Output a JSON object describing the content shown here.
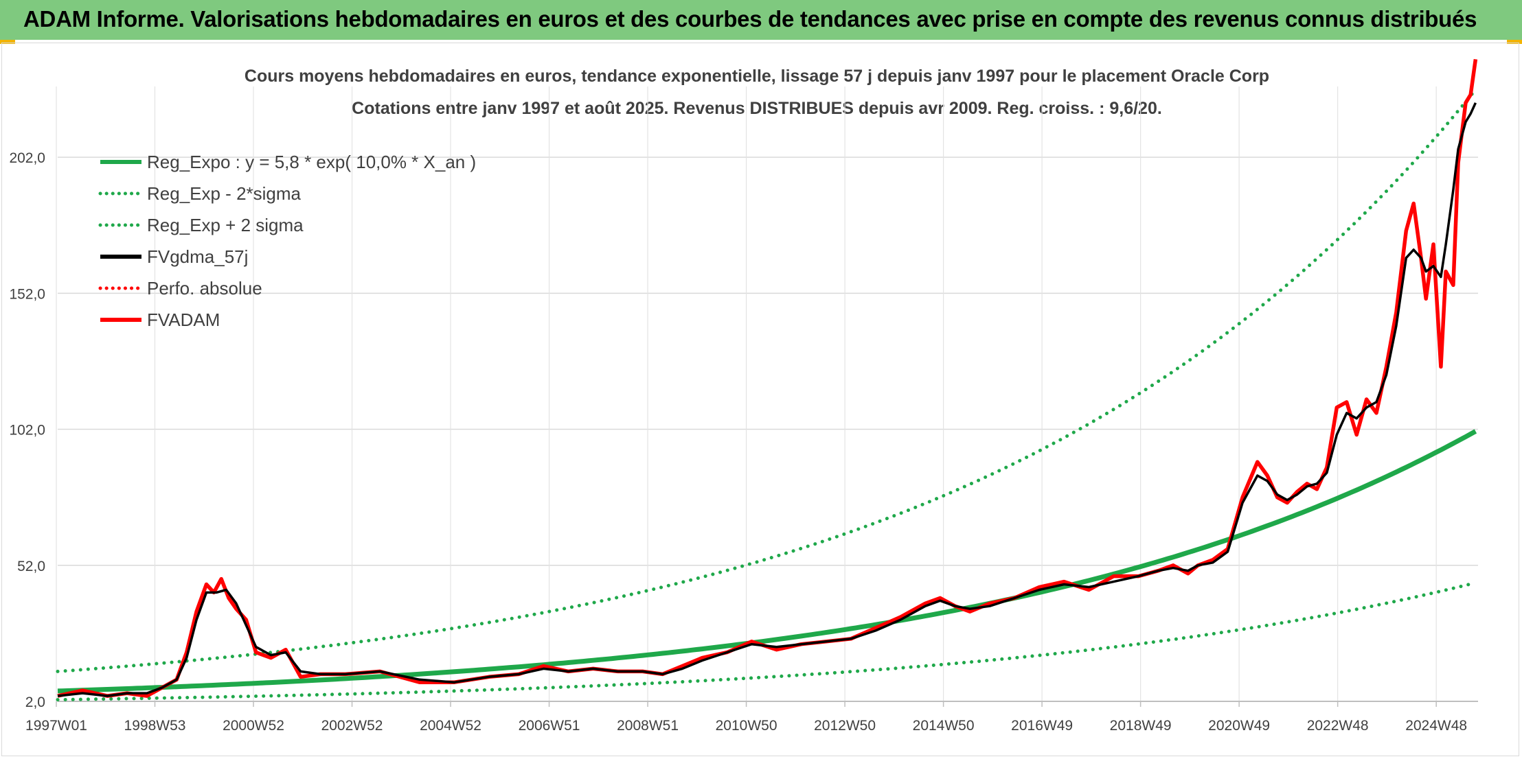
{
  "banner": {
    "title": "ADAM Informe. Valorisations hebdomadaires en euros et des courbes de tendances avec prise en compte des revenus connus distribués"
  },
  "colors": {
    "banner_bg": "#7fc97f",
    "reg_green": "#1fa84a",
    "dot_green": "#1fa84a",
    "fv_black": "#000000",
    "adam_red": "#ff0000",
    "grid": "#d9d9d9",
    "text": "#404040"
  },
  "chart_data": {
    "type": "line",
    "title_line1": "Cours moyens hebdomadaires en euros, tendance exponentielle, lissage 57 j depuis janv 1997 pour le placement Oracle Corp",
    "title_line2": "Cotations entre janv 1997 et août 2025. Revenus DISTRIBUES depuis avr 2009. Reg. croiss. : 9,6/20.",
    "x_tick_labels": [
      "1997W01",
      "1998W53",
      "2000W52",
      "2002W52",
      "2004W52",
      "2006W51",
      "2008W51",
      "2010W50",
      "2012W50",
      "2014W50",
      "2016W49",
      "2018W49",
      "2020W49",
      "2022W48",
      "2024W48"
    ],
    "y_tick_labels": [
      "2,0",
      "52,0",
      "102,0",
      "152,0",
      "202,0"
    ],
    "y_ticks": [
      2,
      52,
      102,
      152,
      202
    ],
    "ylim": [
      2,
      227
    ],
    "xlim": [
      1997.0,
      2025.65
    ],
    "grid": true,
    "legend_position": "top-left",
    "legend": [
      {
        "label": "Reg_Expo : y = 5,8 * exp( 10,0% *  X_an )",
        "style": "solid",
        "color": "#1fa84a"
      },
      {
        "label": "Reg_Exp - 2*sigma",
        "style": "dotted",
        "color": "#1fa84a"
      },
      {
        "label": "Reg_Exp + 2 sigma",
        "style": "dotted",
        "color": "#1fa84a"
      },
      {
        "label": "FVgdma_57j",
        "style": "solid",
        "color": "#000000"
      },
      {
        "label": "Perfo. absolue",
        "style": "dotted",
        "color": "#ff0000"
      },
      {
        "label": "FVADAM",
        "style": "solid",
        "color": "#ff0000"
      }
    ],
    "reg_expo": {
      "a": 5.8,
      "rate": 0.1,
      "x0": 1997.0,
      "lower_factor": 0.45,
      "upper_factor": 2.24
    },
    "series": [
      {
        "name": "FVADAM",
        "x": [
          1997.0,
          1997.5,
          1998.0,
          1998.4,
          1998.8,
          1999.1,
          1999.4,
          1999.6,
          1999.8,
          2000.0,
          2000.15,
          2000.3,
          2000.45,
          2000.6,
          2000.8,
          2001.0,
          2001.3,
          2001.6,
          2001.9,
          2002.3,
          2002.8,
          2003.5,
          2004.3,
          2005.0,
          2005.7,
          2006.3,
          2006.8,
          2007.3,
          2007.8,
          2008.3,
          2008.8,
          2009.2,
          2009.6,
          2010.0,
          2010.5,
          2011.0,
          2011.5,
          2012.0,
          2012.5,
          2013.0,
          2013.5,
          2014.0,
          2014.5,
          2014.8,
          2015.1,
          2015.4,
          2015.8,
          2016.3,
          2016.8,
          2017.3,
          2017.8,
          2018.3,
          2018.8,
          2019.2,
          2019.5,
          2019.8,
          2020.0,
          2020.3,
          2020.6,
          2020.9,
          2021.2,
          2021.4,
          2021.6,
          2021.8,
          2022.0,
          2022.2,
          2022.4,
          2022.6,
          2022.8,
          2023.0,
          2023.2,
          2023.4,
          2023.6,
          2023.8,
          2024.0,
          2024.2,
          2024.35,
          2024.5,
          2024.6,
          2024.75,
          2024.9,
          2025.0,
          2025.15,
          2025.25,
          2025.4,
          2025.5,
          2025.6
        ],
        "values": [
          4,
          6,
          4,
          5,
          4,
          7,
          10,
          20,
          35,
          45,
          42,
          47,
          40,
          36,
          32,
          20,
          18,
          21,
          11,
          12,
          12,
          13,
          9,
          9,
          11,
          12,
          15,
          13,
          14,
          13,
          13,
          12,
          15,
          18,
          20,
          24,
          21,
          23,
          24,
          25,
          29,
          33,
          38,
          40,
          37,
          35,
          38,
          40,
          44,
          46,
          43,
          48,
          48,
          50,
          52,
          49,
          52,
          54,
          58,
          77,
          90,
          85,
          77,
          75,
          79,
          82,
          80,
          88,
          110,
          112,
          100,
          113,
          108,
          125,
          145,
          175,
          185,
          165,
          150,
          170,
          125,
          160,
          155,
          200,
          222,
          225,
          238
        ],
        "values_note": ""
      },
      {
        "name": "FVgdma_57j",
        "x": [
          1997.0,
          1997.5,
          1998.0,
          1998.4,
          1998.8,
          1999.1,
          1999.4,
          1999.6,
          1999.8,
          2000.0,
          2000.2,
          2000.4,
          2000.6,
          2000.8,
          2001.0,
          2001.3,
          2001.6,
          2001.9,
          2002.3,
          2002.8,
          2003.5,
          2004.3,
          2005.0,
          2005.7,
          2006.3,
          2006.8,
          2007.3,
          2007.8,
          2008.3,
          2008.8,
          2009.2,
          2009.6,
          2010.0,
          2010.5,
          2011.0,
          2011.5,
          2012.0,
          2012.5,
          2013.0,
          2013.5,
          2014.0,
          2014.5,
          2014.8,
          2015.1,
          2015.4,
          2015.8,
          2016.3,
          2016.8,
          2017.3,
          2017.8,
          2018.3,
          2018.8,
          2019.2,
          2019.5,
          2019.8,
          2020.0,
          2020.3,
          2020.6,
          2020.9,
          2021.2,
          2021.4,
          2021.6,
          2021.8,
          2022.0,
          2022.2,
          2022.4,
          2022.6,
          2022.8,
          2023.0,
          2023.2,
          2023.4,
          2023.6,
          2023.8,
          2024.0,
          2024.2,
          2024.35,
          2024.5,
          2024.6,
          2024.75,
          2024.9,
          2025.0,
          2025.15,
          2025.25,
          2025.4,
          2025.5,
          2025.6
        ],
        "values": [
          4,
          5,
          4,
          5,
          5,
          7,
          10,
          18,
          32,
          42,
          42,
          43,
          38,
          30,
          22,
          19,
          20,
          13,
          12,
          12,
          13,
          10,
          9,
          11,
          12,
          14,
          13,
          14,
          13,
          13,
          12,
          14,
          17,
          20,
          23,
          22,
          23,
          24,
          25,
          28,
          32,
          37,
          39,
          37,
          36,
          37,
          40,
          43,
          45,
          44,
          46,
          48,
          50,
          51,
          50,
          52,
          53,
          57,
          75,
          85,
          83,
          78,
          76,
          78,
          81,
          82,
          86,
          100,
          108,
          106,
          110,
          112,
          122,
          140,
          165,
          168,
          165,
          160,
          162,
          158,
          170,
          190,
          205,
          215,
          218,
          222
        ]
      }
    ]
  }
}
